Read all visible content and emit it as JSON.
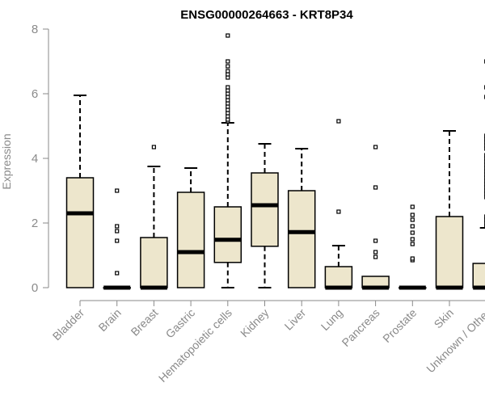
{
  "chart_data": {
    "type": "box",
    "title": "ENSG00000264663 - KRT8P34",
    "xlabel": "",
    "ylabel": "Expression",
    "ylim": [
      0,
      8
    ],
    "yticks": [
      0,
      2,
      4,
      6,
      8
    ],
    "grid": false,
    "colors": {
      "box_fill": "#ede6cc",
      "stroke": "#000000",
      "axis": "#8a8a8a"
    },
    "categories": [
      "Bladder",
      "Brain",
      "Breast",
      "Gastric",
      "Hematopoietic cells",
      "Kidney",
      "Liver",
      "Lung",
      "Pancreas",
      "Prostate",
      "Skin",
      "Unknown / Other"
    ],
    "boxes": [
      {
        "q1": 0,
        "median": 2.3,
        "q3": 3.4,
        "whisker_low": 0,
        "whisker_high": 5.95,
        "outliers": []
      },
      {
        "q1": 0,
        "median": 0,
        "q3": 0,
        "whisker_low": 0,
        "whisker_high": 0,
        "outliers": [
          0.45,
          1.45,
          1.75,
          1.9,
          3.0
        ]
      },
      {
        "q1": 0,
        "median": 0,
        "q3": 1.55,
        "whisker_low": 0,
        "whisker_high": 3.75,
        "outliers": [
          4.35
        ]
      },
      {
        "q1": 0,
        "median": 1.1,
        "q3": 2.95,
        "whisker_low": 0,
        "whisker_high": 3.7,
        "outliers": []
      },
      {
        "q1": 0.78,
        "median": 1.48,
        "q3": 2.5,
        "whisker_low": 0,
        "whisker_high": 5.1,
        "outliers": [
          5.15,
          5.2,
          5.3,
          5.4,
          5.5,
          5.6,
          5.7,
          5.8,
          5.9,
          6.0,
          6.1,
          6.2,
          6.5,
          6.6,
          6.7,
          6.85,
          7.0,
          7.8
        ]
      },
      {
        "q1": 1.28,
        "median": 2.55,
        "q3": 3.55,
        "whisker_low": 0,
        "whisker_high": 4.45,
        "outliers": []
      },
      {
        "q1": 0,
        "median": 1.72,
        "q3": 3.0,
        "whisker_low": 0,
        "whisker_high": 4.3,
        "outliers": []
      },
      {
        "q1": 0,
        "median": 0,
        "q3": 0.65,
        "whisker_low": 0,
        "whisker_high": 1.3,
        "outliers": [
          2.35,
          5.15
        ]
      },
      {
        "q1": 0,
        "median": 0,
        "q3": 0.35,
        "whisker_low": 0,
        "whisker_high": 0.35,
        "outliers": [
          0.95,
          1.1,
          1.45,
          3.1,
          4.35
        ]
      },
      {
        "q1": 0,
        "median": 0,
        "q3": 0,
        "whisker_low": 0,
        "whisker_high": 0,
        "outliers": [
          0.85,
          0.9,
          1.35,
          1.5,
          1.7,
          1.9,
          2.1,
          2.25,
          2.5
        ]
      },
      {
        "q1": 0,
        "median": 0,
        "q3": 2.2,
        "whisker_low": 0,
        "whisker_high": 4.85,
        "outliers": []
      },
      {
        "q1": 0,
        "median": 0,
        "q3": 0.75,
        "whisker_low": 0,
        "whisker_high": 1.85,
        "outliers": [
          1.9,
          2.0,
          2.1,
          2.2,
          2.8,
          2.9,
          3.0,
          3.1,
          3.2,
          3.3,
          3.4,
          3.5,
          3.6,
          3.7,
          3.8,
          3.9,
          4.0,
          4.1,
          4.3,
          4.4,
          4.5,
          4.6,
          4.7,
          5.9,
          6.2,
          7.0
        ]
      }
    ]
  }
}
